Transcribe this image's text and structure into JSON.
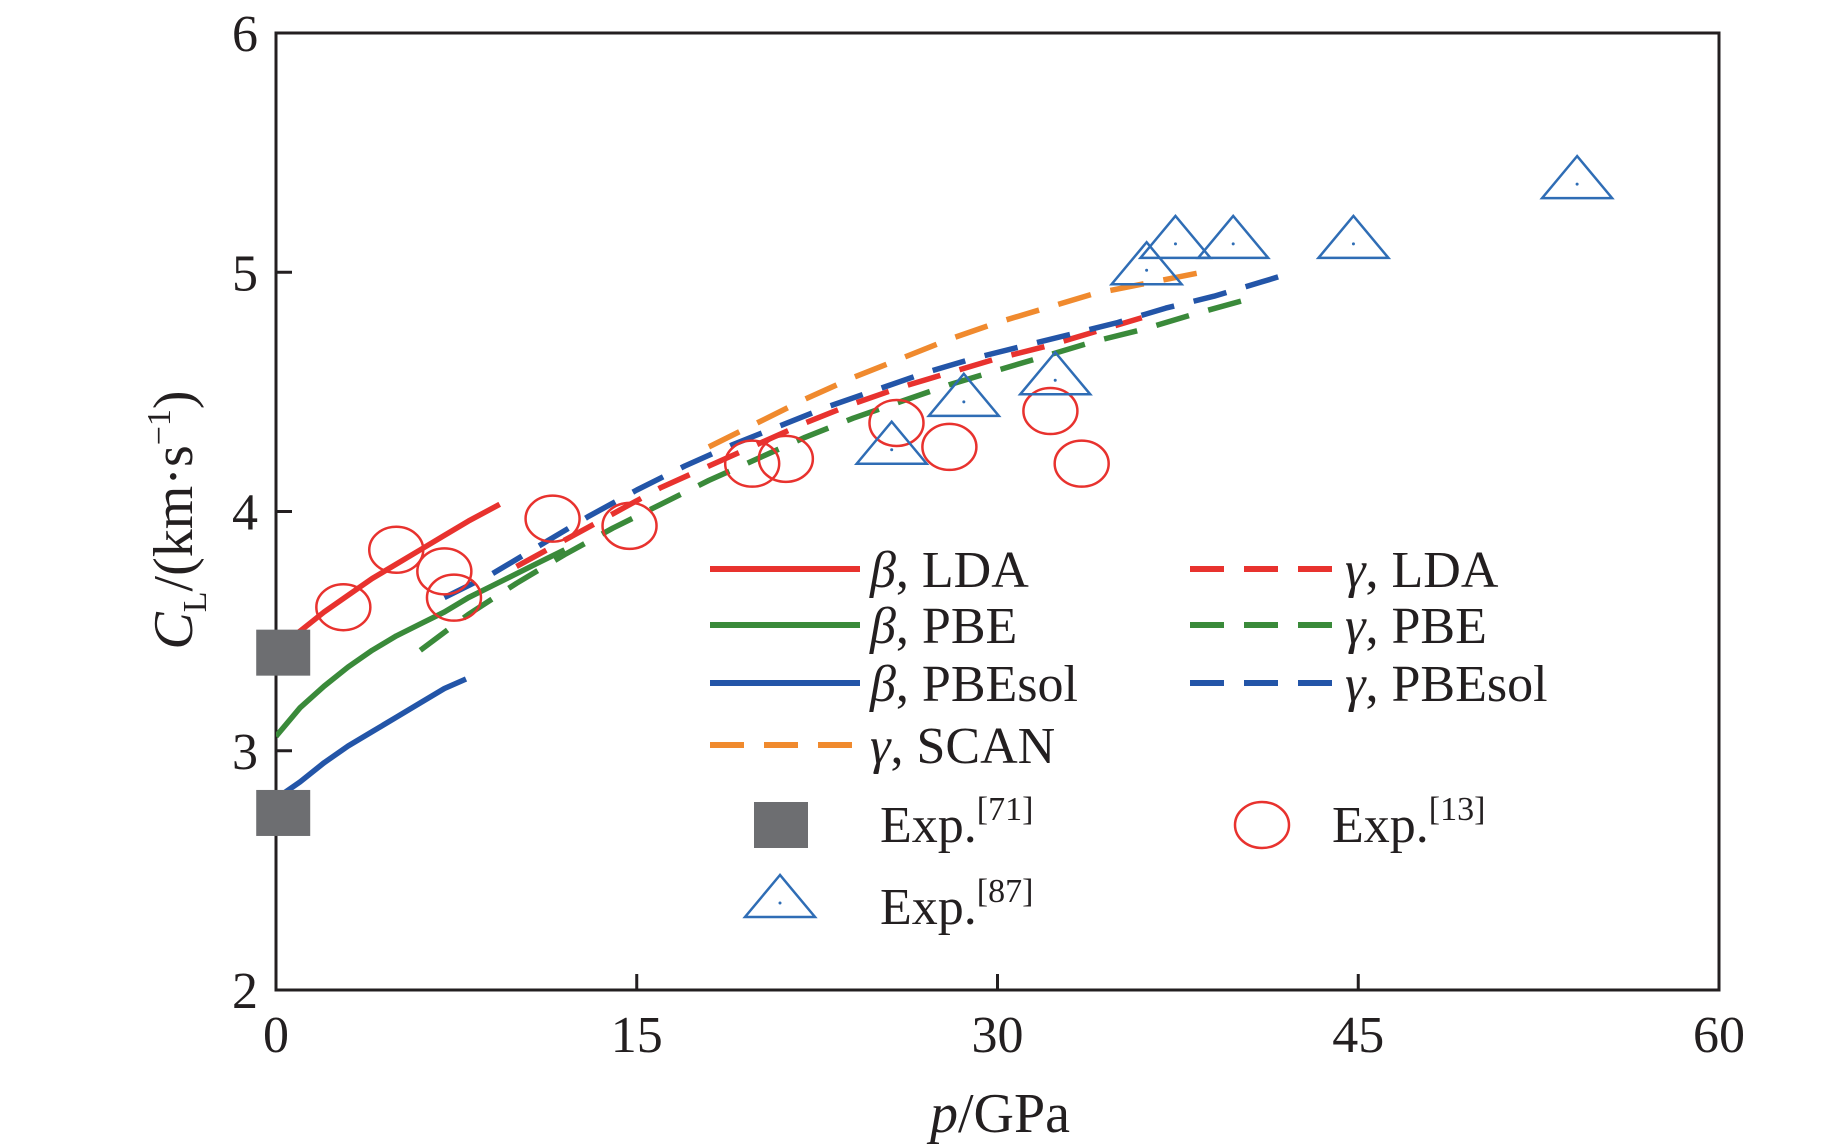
{
  "chart_data": {
    "type": "scatter",
    "xlabel": {
      "italic": "p",
      "rest": "/GPa"
    },
    "ylabel": {
      "italic": "C",
      "sub": "L",
      "rest": "/(km·s",
      "sup": "−1",
      "end": ")"
    },
    "xlim": [
      0,
      60
    ],
    "ylim": [
      2,
      6
    ],
    "xticks": [
      "0",
      "15",
      "30",
      "45",
      "60"
    ],
    "yticks": [
      "2",
      "3",
      "4",
      "5",
      "6"
    ],
    "grid": false,
    "legend_placement": "inside-right",
    "series": [
      {
        "name_greek": "β",
        "name": ", LDA",
        "style": "solid",
        "color": "#e8322e",
        "x": [
          0,
          1,
          2,
          3,
          4,
          5,
          6,
          7,
          8,
          9.3
        ],
        "y": [
          3.41,
          3.5,
          3.58,
          3.65,
          3.72,
          3.78,
          3.84,
          3.9,
          3.96,
          4.03
        ]
      },
      {
        "name_greek": "β",
        "name": ", PBE",
        "style": "solid",
        "color": "#3a8a3a",
        "x": [
          0,
          1,
          2,
          3,
          4,
          5,
          6,
          7,
          8,
          9,
          10,
          11,
          12
        ],
        "y": [
          3.06,
          3.18,
          3.27,
          3.35,
          3.42,
          3.48,
          3.53,
          3.58,
          3.64,
          3.69,
          3.74,
          3.79,
          3.84
        ]
      },
      {
        "name_greek": "β",
        "name": ", PBEsol",
        "style": "solid",
        "color": "#2355a8",
        "x": [
          0,
          1,
          2,
          3,
          4,
          5,
          6,
          7,
          7.9
        ],
        "y": [
          2.8,
          2.87,
          2.95,
          3.02,
          3.08,
          3.14,
          3.2,
          3.26,
          3.3
        ]
      },
      {
        "name_greek": "γ",
        "name": ", SCAN",
        "style": "dashed",
        "color": "#f08a2e",
        "x": [
          18,
          20,
          22,
          24,
          26,
          28,
          30,
          32,
          34,
          36,
          38.5
        ],
        "y": [
          4.27,
          4.37,
          4.47,
          4.56,
          4.64,
          4.72,
          4.79,
          4.85,
          4.91,
          4.95,
          5.0
        ]
      },
      {
        "name_greek": "γ",
        "name": ", LDA",
        "style": "dashed",
        "color": "#e8322e",
        "x": [
          10,
          12,
          14,
          16,
          18,
          20,
          22,
          24,
          26,
          28,
          30,
          32,
          34,
          36
        ],
        "y": [
          3.77,
          3.88,
          3.99,
          4.1,
          4.19,
          4.28,
          4.37,
          4.45,
          4.52,
          4.58,
          4.64,
          4.69,
          4.75,
          4.81
        ]
      },
      {
        "name_greek": "γ",
        "name": ", PBE",
        "style": "dashed",
        "color": "#3a8a3a",
        "x": [
          6,
          8,
          10,
          12,
          14,
          16,
          18,
          20,
          22,
          24,
          26,
          28,
          30,
          32,
          34,
          36,
          38,
          40.5
        ],
        "y": [
          3.42,
          3.57,
          3.7,
          3.82,
          3.93,
          4.03,
          4.13,
          4.22,
          4.31,
          4.39,
          4.46,
          4.53,
          4.59,
          4.65,
          4.71,
          4.76,
          4.82,
          4.89
        ]
      },
      {
        "name_greek": "γ",
        "name": ", PBEsol",
        "style": "dashed",
        "color": "#2355a8",
        "x": [
          7,
          9,
          11,
          13,
          15,
          17,
          19,
          21,
          23,
          25,
          27,
          29,
          31,
          33,
          35,
          37,
          39,
          41,
          42.3
        ],
        "y": [
          3.64,
          3.74,
          3.86,
          3.98,
          4.09,
          4.19,
          4.28,
          4.36,
          4.44,
          4.51,
          4.58,
          4.64,
          4.69,
          4.74,
          4.79,
          4.85,
          4.9,
          4.96,
          5.0
        ]
      }
    ],
    "experiments": [
      {
        "label": "Exp.",
        "ref": "[71]",
        "marker": "square",
        "color": "#6d6e71",
        "x": [
          0.3,
          0.3
        ],
        "y": [
          3.41,
          2.74
        ]
      },
      {
        "label": "Exp.",
        "ref": "[13]",
        "marker": "circle",
        "color": "#e8322e",
        "x": [
          2.8,
          5.0,
          7.0,
          7.4,
          11.5,
          14.7,
          19.8,
          21.2,
          25.8,
          28.0,
          32.2,
          33.5
        ],
        "y": [
          3.6,
          3.84,
          3.75,
          3.64,
          3.97,
          3.94,
          4.2,
          4.22,
          4.37,
          4.27,
          4.42,
          4.2
        ]
      },
      {
        "label": "Exp.",
        "ref": "[87]",
        "marker": "triangle",
        "color": "#2f6db5",
        "x": [
          25.6,
          28.6,
          32.4,
          36.2,
          37.4,
          39.8,
          44.8,
          54.1
        ],
        "y": [
          4.25,
          4.45,
          4.54,
          5.0,
          5.11,
          5.11,
          5.11,
          5.36
        ]
      }
    ]
  }
}
